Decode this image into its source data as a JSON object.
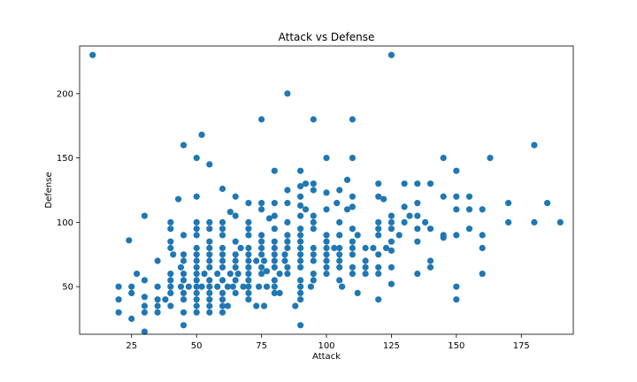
{
  "chart_data": {
    "type": "scatter",
    "title": "Attack vs Defense",
    "xlabel": "Attack",
    "ylabel": "Defense",
    "xlim": [
      5,
      195
    ],
    "ylim": [
      13,
      237
    ],
    "xticks": [
      25,
      50,
      75,
      100,
      125,
      150,
      175
    ],
    "yticks": [
      50,
      100,
      150,
      200
    ],
    "grid": false,
    "color": "#1f77b4",
    "points": [
      [
        10,
        230
      ],
      [
        125,
        230
      ],
      [
        85,
        200
      ],
      [
        75,
        180
      ],
      [
        95,
        180
      ],
      [
        110,
        180
      ],
      [
        52,
        168
      ],
      [
        45,
        160
      ],
      [
        180,
        160
      ],
      [
        50,
        150
      ],
      [
        100,
        150
      ],
      [
        110,
        150
      ],
      [
        145,
        150
      ],
      [
        163,
        150
      ],
      [
        55,
        145
      ],
      [
        80,
        140
      ],
      [
        90,
        140
      ],
      [
        150,
        140
      ],
      [
        108,
        133
      ],
      [
        92,
        130
      ],
      [
        95,
        130
      ],
      [
        90,
        128
      ],
      [
        120,
        130
      ],
      [
        130,
        130
      ],
      [
        135,
        130
      ],
      [
        140,
        130
      ],
      [
        60,
        126
      ],
      [
        85,
        125
      ],
      [
        95,
        125
      ],
      [
        105,
        125
      ],
      [
        110,
        120
      ],
      [
        120,
        120
      ],
      [
        122,
        118
      ],
      [
        145,
        120
      ],
      [
        150,
        120
      ],
      [
        155,
        120
      ],
      [
        43,
        118
      ],
      [
        50,
        120
      ],
      [
        65,
        120
      ],
      [
        90,
        120
      ],
      [
        100,
        123
      ],
      [
        75,
        115
      ],
      [
        80,
        115
      ],
      [
        85,
        115
      ],
      [
        104,
        115
      ],
      [
        70,
        115
      ],
      [
        90,
        113
      ],
      [
        110,
        112
      ],
      [
        135,
        115
      ],
      [
        170,
        115
      ],
      [
        185,
        115
      ],
      [
        92,
        110
      ],
      [
        100,
        110
      ],
      [
        108,
        110
      ],
      [
        130,
        112
      ],
      [
        150,
        110
      ],
      [
        155,
        110
      ],
      [
        160,
        110
      ],
      [
        63,
        108
      ],
      [
        75,
        110
      ],
      [
        80,
        105
      ],
      [
        78,
        103
      ],
      [
        90,
        105
      ],
      [
        95,
        105
      ],
      [
        125,
        105
      ],
      [
        132,
        105
      ],
      [
        135,
        105
      ],
      [
        65,
        105
      ],
      [
        60,
        100
      ],
      [
        70,
        100
      ],
      [
        85,
        100
      ],
      [
        95,
        100
      ],
      [
        105,
        100
      ],
      [
        120,
        100
      ],
      [
        125,
        100
      ],
      [
        130,
        100
      ],
      [
        138,
        100
      ],
      [
        170,
        100
      ],
      [
        180,
        100
      ],
      [
        190,
        100
      ],
      [
        30,
        105
      ],
      [
        40,
        100
      ],
      [
        50,
        100
      ],
      [
        55,
        100
      ],
      [
        40,
        95
      ],
      [
        50,
        95
      ],
      [
        55,
        95
      ],
      [
        60,
        95
      ],
      [
        70,
        95
      ],
      [
        80,
        95
      ],
      [
        90,
        95
      ],
      [
        95,
        95
      ],
      [
        110,
        95
      ],
      [
        120,
        95
      ],
      [
        125,
        95
      ],
      [
        135,
        95
      ],
      [
        140,
        95
      ],
      [
        155,
        95
      ],
      [
        45,
        90
      ],
      [
        50,
        90
      ],
      [
        60,
        90
      ],
      [
        70,
        90
      ],
      [
        75,
        90
      ],
      [
        85,
        90
      ],
      [
        90,
        90
      ],
      [
        100,
        90
      ],
      [
        105,
        90
      ],
      [
        112,
        90
      ],
      [
        120,
        90
      ],
      [
        128,
        90
      ],
      [
        145,
        90
      ],
      [
        150,
        90
      ],
      [
        160,
        90
      ],
      [
        24,
        86
      ],
      [
        40,
        85
      ],
      [
        55,
        85
      ],
      [
        65,
        85
      ],
      [
        75,
        85
      ],
      [
        80,
        85
      ],
      [
        85,
        85
      ],
      [
        90,
        85
      ],
      [
        100,
        85
      ],
      [
        110,
        85
      ],
      [
        125,
        85
      ],
      [
        135,
        85
      ],
      [
        145,
        88
      ],
      [
        40,
        80
      ],
      [
        50,
        80
      ],
      [
        55,
        80
      ],
      [
        60,
        80
      ],
      [
        67,
        80
      ],
      [
        70,
        80
      ],
      [
        75,
        80
      ],
      [
        80,
        80
      ],
      [
        85,
        80
      ],
      [
        90,
        80
      ],
      [
        95,
        80
      ],
      [
        100,
        80
      ],
      [
        103,
        80
      ],
      [
        105,
        80
      ],
      [
        110,
        80
      ],
      [
        115,
        80
      ],
      [
        118,
        80
      ],
      [
        123,
        80
      ],
      [
        125,
        78
      ],
      [
        160,
        80
      ],
      [
        41,
        75
      ],
      [
        45,
        75
      ],
      [
        50,
        75
      ],
      [
        55,
        75
      ],
      [
        60,
        75
      ],
      [
        65,
        75
      ],
      [
        70,
        75
      ],
      [
        75,
        75
      ],
      [
        80,
        75
      ],
      [
        84,
        75
      ],
      [
        90,
        75
      ],
      [
        95,
        75
      ],
      [
        100,
        75
      ],
      [
        105,
        75
      ],
      [
        110,
        75
      ],
      [
        120,
        75
      ],
      [
        35,
        70
      ],
      [
        45,
        70
      ],
      [
        50,
        70
      ],
      [
        55,
        70
      ],
      [
        60,
        70
      ],
      [
        65,
        70
      ],
      [
        70,
        70
      ],
      [
        73,
        70
      ],
      [
        76,
        70
      ],
      [
        80,
        70
      ],
      [
        84,
        70
      ],
      [
        90,
        70
      ],
      [
        95,
        70
      ],
      [
        100,
        70
      ],
      [
        105,
        70
      ],
      [
        115,
        70
      ],
      [
        140,
        70
      ],
      [
        44,
        65
      ],
      [
        50,
        65
      ],
      [
        55,
        65
      ],
      [
        60,
        65
      ],
      [
        65,
        65
      ],
      [
        70,
        65
      ],
      [
        75,
        65
      ],
      [
        80,
        65
      ],
      [
        85,
        65
      ],
      [
        90,
        65
      ],
      [
        100,
        65
      ],
      [
        105,
        65
      ],
      [
        110,
        65
      ],
      [
        115,
        65
      ],
      [
        120,
        65
      ],
      [
        125,
        65
      ],
      [
        140,
        65
      ],
      [
        27,
        60
      ],
      [
        40,
        60
      ],
      [
        45,
        60
      ],
      [
        50,
        60
      ],
      [
        53,
        60
      ],
      [
        58,
        60
      ],
      [
        63,
        60
      ],
      [
        66,
        60
      ],
      [
        70,
        60
      ],
      [
        75,
        60
      ],
      [
        77,
        62
      ],
      [
        82,
        60
      ],
      [
        85,
        60
      ],
      [
        95,
        60
      ],
      [
        100,
        60
      ],
      [
        110,
        60
      ],
      [
        115,
        60
      ],
      [
        120,
        60
      ],
      [
        135,
        60
      ],
      [
        160,
        60
      ],
      [
        30,
        55
      ],
      [
        40,
        55
      ],
      [
        45,
        55
      ],
      [
        50,
        55
      ],
      [
        55,
        55
      ],
      [
        60,
        55
      ],
      [
        65,
        55
      ],
      [
        70,
        55
      ],
      [
        80,
        55
      ],
      [
        90,
        55
      ],
      [
        95,
        55
      ],
      [
        105,
        55
      ],
      [
        20,
        50
      ],
      [
        25,
        50
      ],
      [
        35,
        50
      ],
      [
        40,
        50
      ],
      [
        44,
        50
      ],
      [
        47,
        50
      ],
      [
        50,
        50
      ],
      [
        52,
        50
      ],
      [
        55,
        50
      ],
      [
        58,
        50
      ],
      [
        62,
        50
      ],
      [
        64,
        50
      ],
      [
        68,
        50
      ],
      [
        70,
        50
      ],
      [
        74,
        50
      ],
      [
        77,
        50
      ],
      [
        80,
        50
      ],
      [
        90,
        50
      ],
      [
        94,
        50
      ],
      [
        106,
        50
      ],
      [
        125,
        52
      ],
      [
        150,
        50
      ],
      [
        25,
        45
      ],
      [
        40,
        45
      ],
      [
        45,
        45
      ],
      [
        50,
        45
      ],
      [
        55,
        45
      ],
      [
        60,
        45
      ],
      [
        65,
        45
      ],
      [
        70,
        45
      ],
      [
        80,
        45
      ],
      [
        82,
        45
      ],
      [
        90,
        45
      ],
      [
        112,
        45
      ],
      [
        30,
        42
      ],
      [
        35,
        40
      ],
      [
        38,
        40
      ],
      [
        20,
        40
      ],
      [
        45,
        40
      ],
      [
        50,
        40
      ],
      [
        55,
        40
      ],
      [
        60,
        40
      ],
      [
        70,
        40
      ],
      [
        90,
        40
      ],
      [
        120,
        40
      ],
      [
        150,
        40
      ],
      [
        30,
        35
      ],
      [
        35,
        35
      ],
      [
        40,
        35
      ],
      [
        50,
        35
      ],
      [
        55,
        35
      ],
      [
        60,
        35
      ],
      [
        62,
        35
      ],
      [
        73,
        35
      ],
      [
        76,
        35
      ],
      [
        88,
        35
      ],
      [
        20,
        30
      ],
      [
        30,
        30
      ],
      [
        35,
        30
      ],
      [
        45,
        30
      ],
      [
        50,
        30
      ],
      [
        55,
        30
      ],
      [
        60,
        30
      ],
      [
        25,
        25
      ],
      [
        45,
        20
      ],
      [
        90,
        20
      ],
      [
        30,
        15
      ]
    ]
  }
}
